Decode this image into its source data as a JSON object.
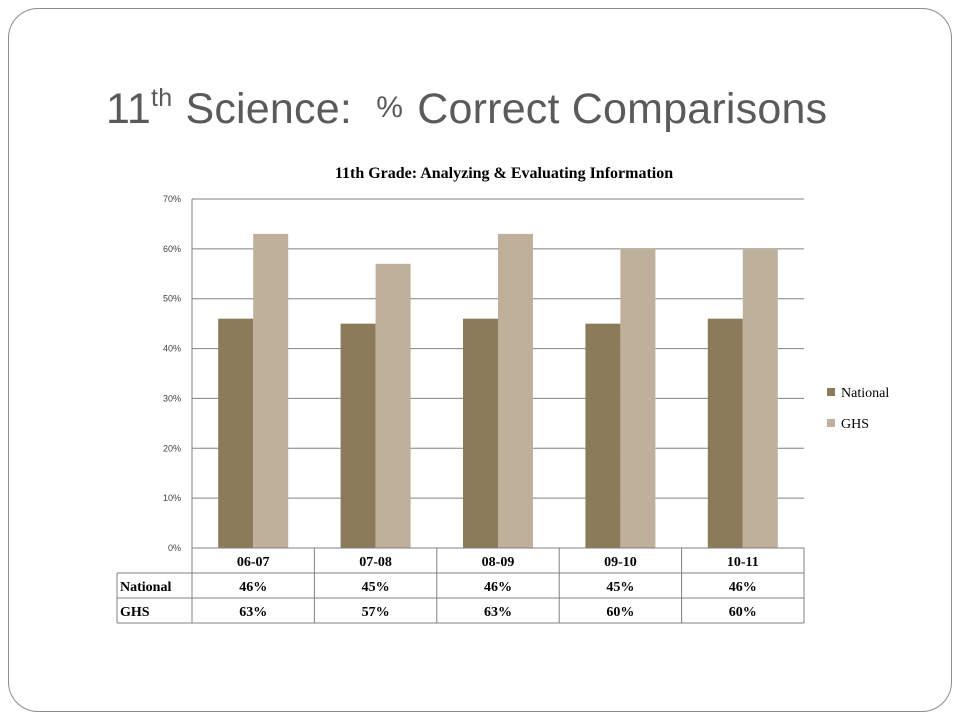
{
  "slide": {
    "title_main": "11",
    "title_sup": "th",
    "title_mid": " Science:  ",
    "title_pct": "%",
    "title_end": " Correct Comparisons"
  },
  "colors": {
    "national": "#8c7b5a",
    "ghs": "#beb09b",
    "grid": "#808080",
    "text": "#000000"
  },
  "chart_data": {
    "type": "bar",
    "title": "11th Grade: Analyzing & Evaluating Information",
    "categories": [
      "06-07",
      "07-08",
      "08-09",
      "09-10",
      "10-11"
    ],
    "series": [
      {
        "name": "National",
        "values": [
          46,
          45,
          46,
          45,
          46
        ],
        "labels": [
          "46%",
          "45%",
          "46%",
          "45%",
          "46%"
        ]
      },
      {
        "name": "GHS",
        "values": [
          63,
          57,
          63,
          60,
          60
        ],
        "labels": [
          "63%",
          "57%",
          "63%",
          "60%",
          "60%"
        ]
      }
    ],
    "ylim": [
      0,
      70
    ],
    "yticks": [
      "0%",
      "10%",
      "20%",
      "30%",
      "40%",
      "50%",
      "60%",
      "70%"
    ],
    "grid": true,
    "legend": "right",
    "data_table": true
  }
}
